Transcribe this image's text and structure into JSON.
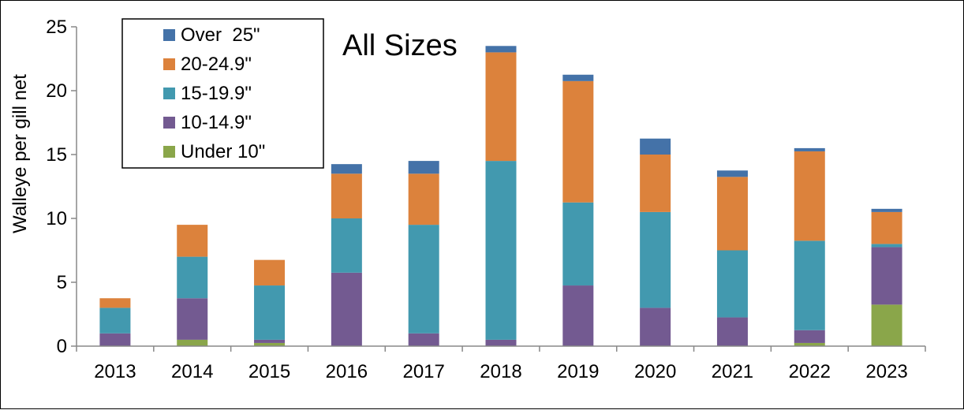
{
  "chart_data": {
    "type": "bar",
    "stacked": true,
    "title": "All Sizes",
    "xlabel": "",
    "ylabel": "Walleye per gill net",
    "ylim": [
      0,
      25
    ],
    "yticks": [
      0,
      5,
      10,
      15,
      20,
      25
    ],
    "categories": [
      "2013",
      "2014",
      "2015",
      "2016",
      "2017",
      "2018",
      "2019",
      "2020",
      "2021",
      "2022",
      "2023"
    ],
    "legend_position": "top-left",
    "series": [
      {
        "name": "Under 10\"",
        "color": "#8aa64a",
        "values": [
          0,
          0.5,
          0.25,
          0,
          0,
          0,
          0,
          0,
          0,
          0.25,
          3.25
        ]
      },
      {
        "name": "10-14.9\"",
        "color": "#735a91",
        "values": [
          1.0,
          3.25,
          0.25,
          5.75,
          1.0,
          0.5,
          4.75,
          3.0,
          2.25,
          1.0,
          4.5
        ]
      },
      {
        "name": "15-19.9\"",
        "color": "#4299af",
        "values": [
          2.0,
          3.25,
          4.25,
          4.25,
          8.5,
          14.0,
          6.5,
          7.5,
          5.25,
          7.0,
          0.25
        ]
      },
      {
        "name": "20-24.9\"",
        "color": "#dc823c",
        "values": [
          0.75,
          2.5,
          2.0,
          3.5,
          4.0,
          8.5,
          9.5,
          4.5,
          5.75,
          7.0,
          2.5
        ]
      },
      {
        "name": "Over  25\"",
        "color": "#4472a8",
        "values": [
          0,
          0,
          0,
          0.75,
          1.0,
          0.5,
          0.5,
          1.25,
          0.5,
          0.25,
          0.25
        ]
      }
    ]
  }
}
